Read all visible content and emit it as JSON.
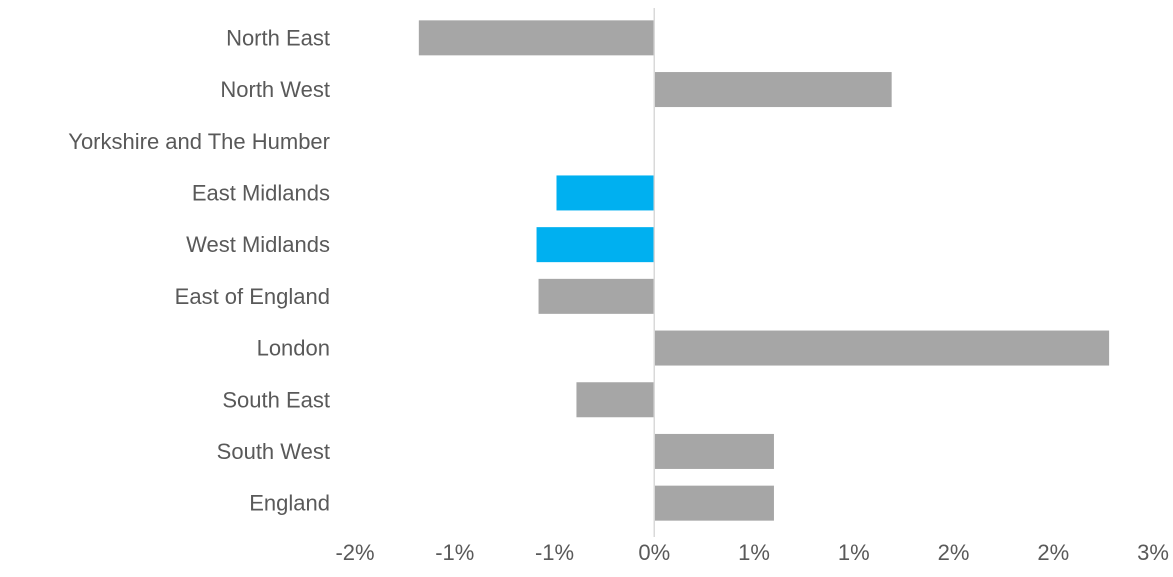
{
  "chart_data": {
    "type": "bar",
    "orientation": "horizontal",
    "categories": [
      "North East",
      "North West",
      "Yorkshire and The Humber",
      "East Midlands",
      "West Midlands",
      "East of England",
      "London",
      "South East",
      "South West",
      "England"
    ],
    "values": [
      -1.18,
      1.19,
      0.0,
      -0.49,
      -0.59,
      -0.58,
      2.28,
      -0.39,
      0.6,
      0.6
    ],
    "bar_colors": [
      "#a6a6a6",
      "#a6a6a6",
      "#a6a6a6",
      "#00b0f0",
      "#00b0f0",
      "#a6a6a6",
      "#a6a6a6",
      "#a6a6a6",
      "#a6a6a6",
      "#a6a6a6"
    ],
    "x_tick_values": [
      -1.5,
      -1.0,
      -0.5,
      0.0,
      0.5,
      1.0,
      1.5,
      2.0,
      2.5
    ],
    "x_tick_labels": [
      "-2%",
      "-1%",
      "-1%",
      "0%",
      "1%",
      "1%",
      "2%",
      "2%",
      "3%"
    ],
    "xlim": [
      -1.5,
      2.5
    ],
    "title": "",
    "xlabel": "",
    "ylabel": "",
    "grid": false,
    "legend": "none",
    "axis_color": "#d9d9d9",
    "text_color": "#595959"
  }
}
